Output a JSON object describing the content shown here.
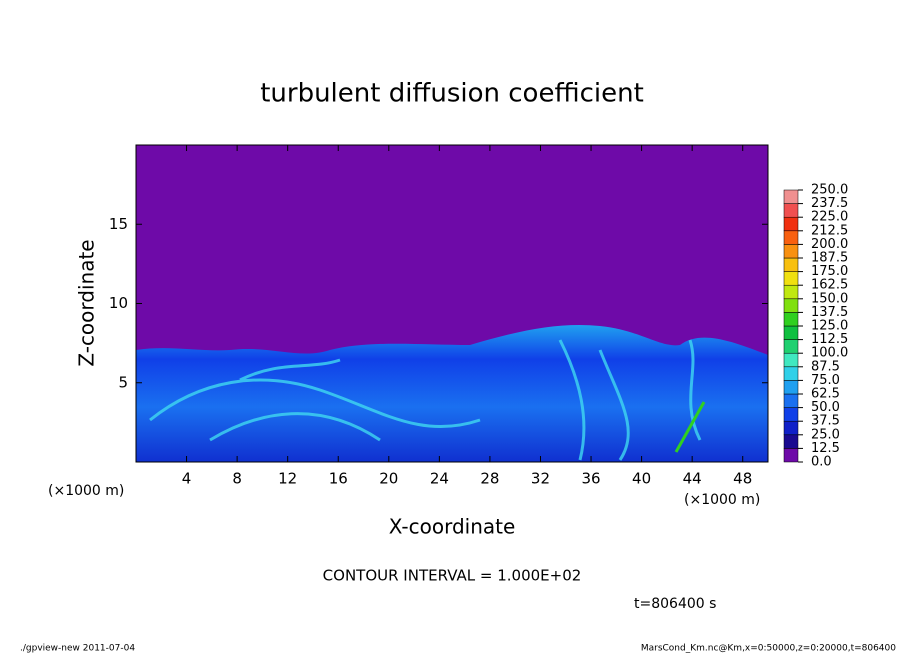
{
  "chart_data": {
    "type": "contour",
    "title": "turbulent diffusion coefficient",
    "xlabel": "X-coordinate",
    "ylabel": "Z-coordinate",
    "xunit": "(×1000 m)",
    "yunit": "(×1000 m)",
    "xlim": [
      0,
      50
    ],
    "xticks": [
      4,
      8,
      12,
      16,
      20,
      24,
      28,
      32,
      36,
      40,
      44,
      48
    ],
    "ylim": [
      0,
      20
    ],
    "yticks": [
      5,
      10,
      15
    ],
    "levels": [
      {
        "value": 0,
        "label": "0.0"
      },
      {
        "value": 12.5,
        "label": "12.5"
      },
      {
        "value": 25,
        "label": "25.0"
      },
      {
        "value": 37.5,
        "label": "37.5"
      },
      {
        "value": 50,
        "label": "50.0"
      },
      {
        "value": 62.5,
        "label": "62.5"
      },
      {
        "value": 75,
        "label": "75.0"
      },
      {
        "value": 87.5,
        "label": "87.5"
      },
      {
        "value": 100,
        "label": "100.0"
      },
      {
        "value": 112.5,
        "label": "112.5"
      },
      {
        "value": 125,
        "label": "125.0"
      },
      {
        "value": 137.5,
        "label": "137.5"
      },
      {
        "value": 150,
        "label": "150.0"
      },
      {
        "value": 162.5,
        "label": "162.5"
      },
      {
        "value": 175,
        "label": "175.0"
      },
      {
        "value": 187.5,
        "label": "187.5"
      },
      {
        "value": 200,
        "label": "200.0"
      },
      {
        "value": 212.5,
        "label": "212.5"
      },
      {
        "value": 225,
        "label": "225.0"
      },
      {
        "value": 237.5,
        "label": "237.5"
      },
      {
        "value": 250,
        "label": "250.0"
      }
    ],
    "colors": [
      "#6e0aa8",
      "#1a0a90",
      "#1020c8",
      "#1040e8",
      "#1a70f0",
      "#20a0f0",
      "#30d0e8",
      "#40e8c0",
      "#20d070",
      "#10c040",
      "#30d020",
      "#80e010",
      "#c0e810",
      "#f0e010",
      "#f8c010",
      "#f89010",
      "#f86010",
      "#f03010",
      "#f05050",
      "#f09090"
    ],
    "contour_note": "CONTOUR INTERVAL = 1.000E+02",
    "time_label": "t=806400 s",
    "footer_left": "./gpview-new  2011-07-04",
    "footer_right": "MarsCond_Km.nc@Km,x=0:50000,z=0:20000,t=806400"
  }
}
